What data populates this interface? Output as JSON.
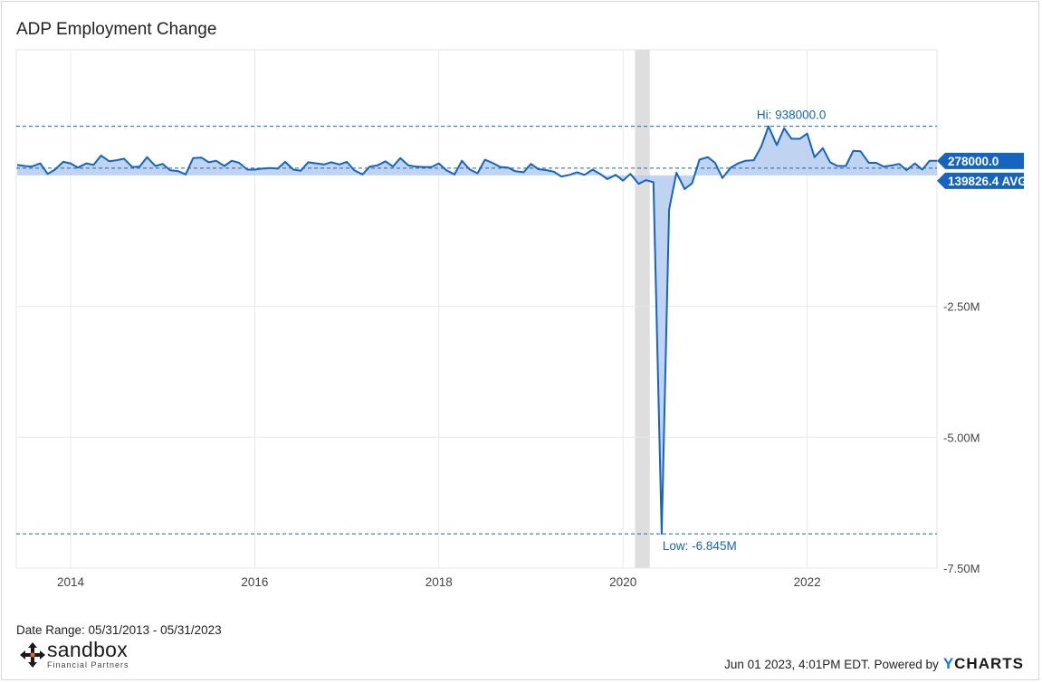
{
  "chart_data": {
    "type": "area",
    "title": "ADP Employment Change",
    "x_tick_labels": [
      "2014",
      "2016",
      "2018",
      "2020",
      "2022"
    ],
    "x_ticks": [
      2014,
      2016,
      2018,
      2020,
      2022
    ],
    "xlim": [
      2013.41,
      2023.41
    ],
    "y_tick_labels": [
      "-2.50M",
      "-5.00M",
      "-7.50M"
    ],
    "y_ticks": [
      -2500000,
      -5000000,
      -7500000
    ],
    "ylim": [
      -7500000,
      2400000
    ],
    "grid": true,
    "recession_shading": [
      [
        2020.13,
        2020.29
      ]
    ],
    "annotations": {
      "high_label": "Hi: 938000.0",
      "high_value": 938000,
      "low_label": "Low: -6.845M",
      "low_value": -6845000,
      "last_label": "278000.0",
      "last_value": 278000,
      "average_label": "139826.4 AVG",
      "average_value": 139826.4
    },
    "series": [
      {
        "values": [
          [
            2013.42,
            200000
          ],
          [
            2013.5,
            180000
          ],
          [
            2013.58,
            170000
          ],
          [
            2013.67,
            230000
          ],
          [
            2013.75,
            30000
          ],
          [
            2013.83,
            110000
          ],
          [
            2013.92,
            260000
          ],
          [
            2014.0,
            230000
          ],
          [
            2014.08,
            150000
          ],
          [
            2014.17,
            230000
          ],
          [
            2014.25,
            200000
          ],
          [
            2014.33,
            380000
          ],
          [
            2014.42,
            270000
          ],
          [
            2014.5,
            290000
          ],
          [
            2014.58,
            320000
          ],
          [
            2014.67,
            160000
          ],
          [
            2014.75,
            170000
          ],
          [
            2014.83,
            350000
          ],
          [
            2014.92,
            180000
          ],
          [
            2015.0,
            220000
          ],
          [
            2015.08,
            100000
          ],
          [
            2015.17,
            80000
          ],
          [
            2015.25,
            20000
          ],
          [
            2015.33,
            330000
          ],
          [
            2015.42,
            340000
          ],
          [
            2015.5,
            250000
          ],
          [
            2015.58,
            280000
          ],
          [
            2015.67,
            180000
          ],
          [
            2015.75,
            280000
          ],
          [
            2015.83,
            240000
          ],
          [
            2015.92,
            110000
          ],
          [
            2016.0,
            110000
          ],
          [
            2016.08,
            130000
          ],
          [
            2016.17,
            140000
          ],
          [
            2016.25,
            130000
          ],
          [
            2016.33,
            260000
          ],
          [
            2016.42,
            110000
          ],
          [
            2016.5,
            90000
          ],
          [
            2016.58,
            250000
          ],
          [
            2016.67,
            230000
          ],
          [
            2016.75,
            210000
          ],
          [
            2016.83,
            250000
          ],
          [
            2016.92,
            210000
          ],
          [
            2017.0,
            260000
          ],
          [
            2017.08,
            100000
          ],
          [
            2017.17,
            20000
          ],
          [
            2017.25,
            170000
          ],
          [
            2017.33,
            190000
          ],
          [
            2017.42,
            270000
          ],
          [
            2017.5,
            170000
          ],
          [
            2017.58,
            330000
          ],
          [
            2017.67,
            190000
          ],
          [
            2017.75,
            170000
          ],
          [
            2017.83,
            160000
          ],
          [
            2017.92,
            160000
          ],
          [
            2018.0,
            230000
          ],
          [
            2018.08,
            100000
          ],
          [
            2018.17,
            20000
          ],
          [
            2018.25,
            280000
          ],
          [
            2018.33,
            120000
          ],
          [
            2018.42,
            40000
          ],
          [
            2018.5,
            300000
          ],
          [
            2018.58,
            240000
          ],
          [
            2018.67,
            160000
          ],
          [
            2018.75,
            150000
          ],
          [
            2018.83,
            80000
          ],
          [
            2018.92,
            60000
          ],
          [
            2019.0,
            220000
          ],
          [
            2019.08,
            120000
          ],
          [
            2019.17,
            100000
          ],
          [
            2019.25,
            70000
          ],
          [
            2019.33,
            -20000
          ],
          [
            2019.42,
            10000
          ],
          [
            2019.5,
            60000
          ],
          [
            2019.58,
            10000
          ],
          [
            2019.67,
            110000
          ],
          [
            2019.75,
            30000
          ],
          [
            2019.83,
            -70000
          ],
          [
            2019.92,
            10000
          ],
          [
            2020.0,
            -100000
          ],
          [
            2020.08,
            30000
          ],
          [
            2020.17,
            -160000
          ],
          [
            2020.25,
            -90000
          ],
          [
            2020.33,
            -130000
          ],
          [
            2020.42,
            -6845000
          ],
          [
            2020.5,
            -650000
          ],
          [
            2020.58,
            50000
          ],
          [
            2020.67,
            -260000
          ],
          [
            2020.75,
            -150000
          ],
          [
            2020.83,
            300000
          ],
          [
            2020.92,
            350000
          ],
          [
            2021.0,
            240000
          ],
          [
            2021.08,
            -50000
          ],
          [
            2021.17,
            150000
          ],
          [
            2021.25,
            230000
          ],
          [
            2021.33,
            280000
          ],
          [
            2021.42,
            290000
          ],
          [
            2021.5,
            550000
          ],
          [
            2021.58,
            938000
          ],
          [
            2021.67,
            580000
          ],
          [
            2021.75,
            900000
          ],
          [
            2021.83,
            700000
          ],
          [
            2021.92,
            700000
          ],
          [
            2022.0,
            800000
          ],
          [
            2022.08,
            350000
          ],
          [
            2022.17,
            520000
          ],
          [
            2022.25,
            250000
          ],
          [
            2022.33,
            180000
          ],
          [
            2022.42,
            180000
          ],
          [
            2022.5,
            470000
          ],
          [
            2022.58,
            460000
          ],
          [
            2022.67,
            240000
          ],
          [
            2022.75,
            240000
          ],
          [
            2022.83,
            170000
          ],
          [
            2022.92,
            190000
          ],
          [
            2023.0,
            220000
          ],
          [
            2023.08,
            100000
          ],
          [
            2023.17,
            230000
          ],
          [
            2023.25,
            110000
          ],
          [
            2023.33,
            280000
          ],
          [
            2023.41,
            278000
          ]
        ]
      }
    ],
    "colors": {
      "line": "#1565c0",
      "fill": "#b9cff0",
      "grid": "#e8e8e8",
      "recession": "#dedede",
      "label_bg": "#1565c0"
    }
  },
  "footer": {
    "date_range": "Date Range: 05/31/2013 - 05/31/2023",
    "logo_name": "sandbox",
    "logo_sub": "Financial Partners",
    "logo_icon": "four-arrows-icon",
    "timestamp": "Jun 01 2023, 4:01PM EDT.",
    "powered_by": "Powered by",
    "brand": "YCHARTS"
  }
}
